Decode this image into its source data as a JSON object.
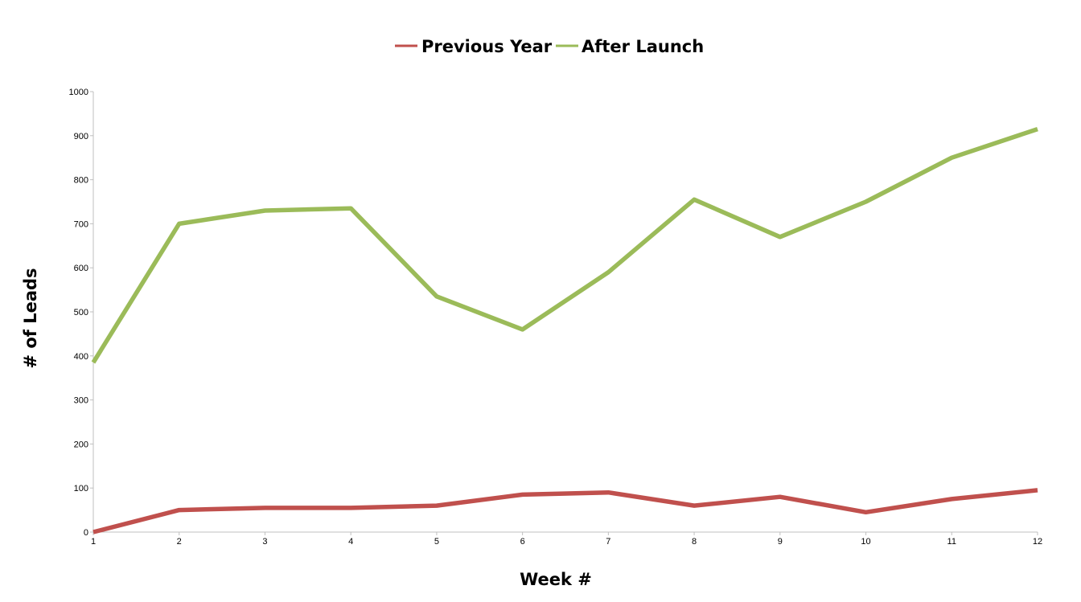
{
  "chart_data": {
    "type": "line",
    "title": "",
    "xlabel": "Week #",
    "ylabel": "# of Leads",
    "x": [
      1,
      2,
      3,
      4,
      5,
      6,
      7,
      8,
      9,
      10,
      11,
      12
    ],
    "x_tick_labels": [
      "1",
      "2",
      "3",
      "4",
      "5",
      "6",
      "7",
      "8",
      "9",
      "10",
      "11",
      "12"
    ],
    "ylim": [
      0,
      1000
    ],
    "y_ticks": [
      0,
      100,
      200,
      300,
      400,
      500,
      600,
      700,
      800,
      900,
      1000
    ],
    "y_tick_labels": [
      "0",
      "100",
      "200",
      "300",
      "400",
      "500",
      "600",
      "700",
      "800",
      "900",
      "1000"
    ],
    "grid": false,
    "legend_position": "top-center",
    "series": [
      {
        "name": "Previous Year",
        "color": "#c0504d",
        "values": [
          0,
          50,
          55,
          55,
          60,
          85,
          90,
          60,
          80,
          45,
          75,
          95
        ]
      },
      {
        "name": "After Launch",
        "color": "#9bbb59",
        "values": [
          385,
          700,
          730,
          735,
          535,
          460,
          590,
          755,
          670,
          750,
          850,
          915
        ]
      }
    ]
  }
}
